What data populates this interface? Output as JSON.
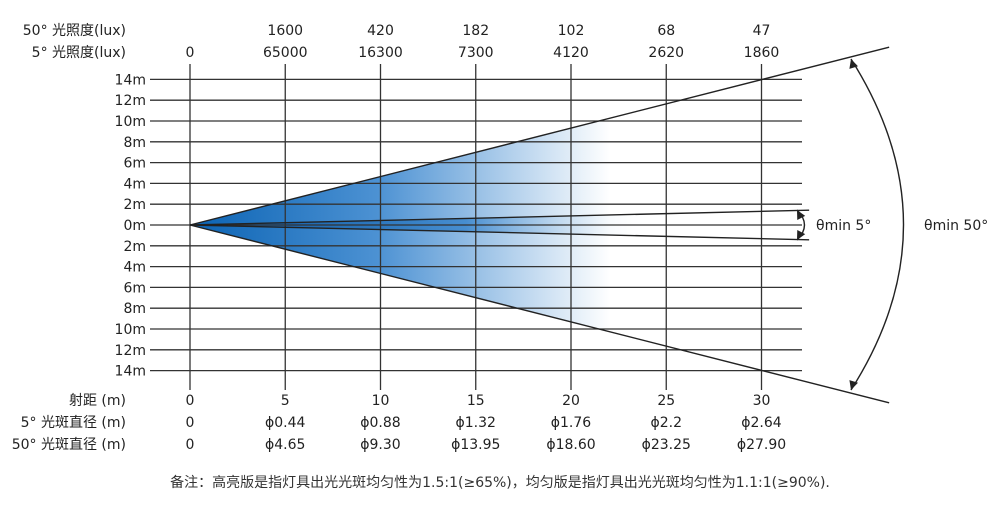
{
  "chart_data": {
    "type": "line",
    "title": "",
    "subtitle": "",
    "header_rows": [
      {
        "label": "50° 光照度(lux)",
        "values": [
          "",
          "1600",
          "420",
          "182",
          "102",
          "68",
          "47"
        ]
      },
      {
        "label": "5° 光照度(lux)",
        "values": [
          "0",
          "65000",
          "16300",
          "7300",
          "4120",
          "2620",
          "1860"
        ]
      }
    ],
    "footer_rows": [
      {
        "label": "射距 (m)",
        "values": [
          "0",
          "5",
          "10",
          "15",
          "20",
          "25",
          "30"
        ]
      },
      {
        "label": "5° 光斑直径 (m)",
        "values": [
          "0",
          "ϕ0.44",
          "ϕ0.88",
          "ϕ1.32",
          "ϕ1.76",
          "ϕ2.2",
          "ϕ2.64"
        ]
      },
      {
        "label": "50° 光斑直径 (m)",
        "values": [
          "0",
          "ϕ4.65",
          "ϕ9.30",
          "ϕ13.95",
          "ϕ18.60",
          "ϕ23.25",
          "ϕ27.90"
        ]
      }
    ],
    "x": [
      0,
      5,
      10,
      15,
      20,
      25,
      30
    ],
    "xlabel": "射距 (m)",
    "xlim": [
      0,
      32.5
    ],
    "ylim": [
      -14,
      14
    ],
    "y_ticks": [
      {
        "value": 14,
        "label": "14m"
      },
      {
        "value": 12,
        "label": "12m"
      },
      {
        "value": 10,
        "label": "10m"
      },
      {
        "value": 8,
        "label": "8m"
      },
      {
        "value": 6,
        "label": "6m"
      },
      {
        "value": 4,
        "label": "4m"
      },
      {
        "value": 2,
        "label": "2m"
      },
      {
        "value": 0,
        "label": "0m"
      },
      {
        "value": -2,
        "label": "2m"
      },
      {
        "value": -4,
        "label": "4m"
      },
      {
        "value": -6,
        "label": "6m"
      },
      {
        "value": -8,
        "label": "8m"
      },
      {
        "value": -10,
        "label": "10m"
      },
      {
        "value": -12,
        "label": "12m"
      },
      {
        "value": -14,
        "label": "14m"
      }
    ],
    "grid": true,
    "series": [
      {
        "name": "θmin 5°",
        "half_angle_deg": 2.5,
        "x": [
          0,
          32.5
        ],
        "y_upper": [
          0,
          1.42
        ],
        "y_lower": [
          0,
          -1.42
        ]
      },
      {
        "name": "θmin 50°",
        "half_angle_deg": 25,
        "x": [
          0,
          36.7
        ],
        "y_upper": [
          0,
          17.1
        ],
        "y_lower": [
          0,
          -17.1
        ]
      }
    ],
    "annotations": [
      "θmin 5°",
      "θmin 50°"
    ],
    "colors": {
      "beam_dark": "#0a63b4",
      "beam_light": "#ffffff",
      "grid": "#333333",
      "line": "#222222"
    }
  },
  "note": "备注：高亮版是指灯具出光光斑均匀性为1.5:1(≥65%)，均匀版是指灯具出光光斑均匀性为1.1:1(≥90%)."
}
